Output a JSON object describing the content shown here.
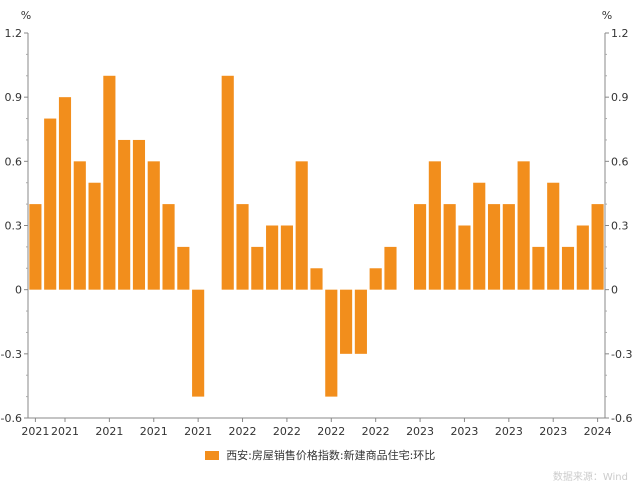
{
  "chart_data": {
    "type": "bar",
    "ylabel_left": "%",
    "ylabel_right": "%",
    "ylim": [
      -0.6,
      1.2
    ],
    "yticks": [
      "1.2",
      "0.9",
      "0.6",
      "0.3",
      "0",
      "-0.3",
      "-0.6"
    ],
    "ytick_values": [
      1.2,
      0.9,
      0.6,
      0.3,
      0,
      -0.3,
      -0.6
    ],
    "x_tick_labels": [
      "2021",
      "2021",
      "2021",
      "2021",
      "2021",
      "2022",
      "2022",
      "2022",
      "2022",
      "2023",
      "2023",
      "2023",
      "2023",
      "2024"
    ],
    "x_tick_index": [
      0,
      2,
      5,
      8,
      11,
      14,
      17,
      20,
      23,
      26,
      29,
      32,
      35,
      38
    ],
    "series": [
      {
        "name": "西安:房屋销售价格指数:新建商品住宅:环比",
        "color": "#f28e1c",
        "values": [
          0.4,
          0.8,
          0.9,
          0.6,
          0.5,
          1.0,
          0.7,
          0.7,
          0.6,
          0.4,
          0.2,
          -0.5,
          0,
          1.0,
          0.4,
          0.2,
          0.3,
          0.3,
          0.6,
          0.1,
          -0.5,
          -0.3,
          -0.3,
          0.1,
          0.2,
          0,
          0.4,
          0.6,
          0.4,
          0.3,
          0.5,
          0.4,
          0.4,
          0.6,
          0.2,
          0.5,
          0.2,
          0.3,
          0.4
        ]
      }
    ],
    "grid": false,
    "legend_position": "bottom"
  },
  "source_text": "数据来源：Wind"
}
